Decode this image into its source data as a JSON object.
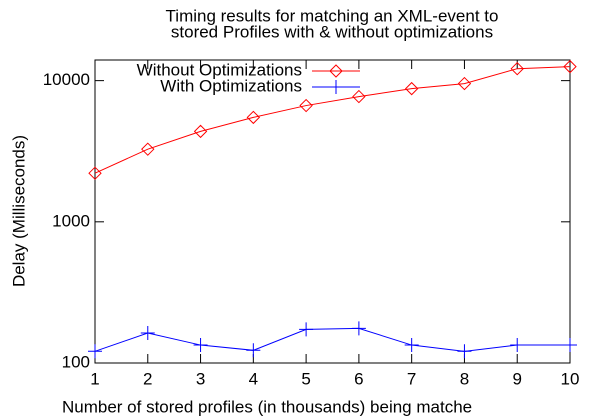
{
  "chart_data": {
    "type": "line",
    "title": [
      "Timing results for matching an XML-event to",
      "stored Profiles with & without optimizations"
    ],
    "x_label": "Number of stored profiles (in thousands) being matche",
    "y_label": "Delay  (Milliseconds)",
    "x": [
      1,
      2,
      3,
      4,
      5,
      6,
      7,
      8,
      9,
      10
    ],
    "series": [
      {
        "name": "Without Optimizations",
        "color": "#ff0000",
        "marker": "diamond",
        "values": [
          2210,
          3270,
          4370,
          5490,
          6660,
          7710,
          8780,
          9530,
          12150,
          12560
        ]
      },
      {
        "name": "With Optimizations",
        "color": "#0000ff",
        "marker": "plus",
        "values": [
          121,
          163,
          134,
          123,
          173,
          176,
          134,
          121,
          134,
          134
        ]
      }
    ],
    "xlim": [
      1,
      10
    ],
    "xticks": [
      1,
      2,
      3,
      4,
      5,
      6,
      7,
      8,
      9,
      10
    ],
    "ylim": [
      100,
      14000
    ],
    "yticks": [
      100,
      1000,
      10000
    ],
    "log_y": true,
    "grid": false,
    "legend": "top-left"
  }
}
